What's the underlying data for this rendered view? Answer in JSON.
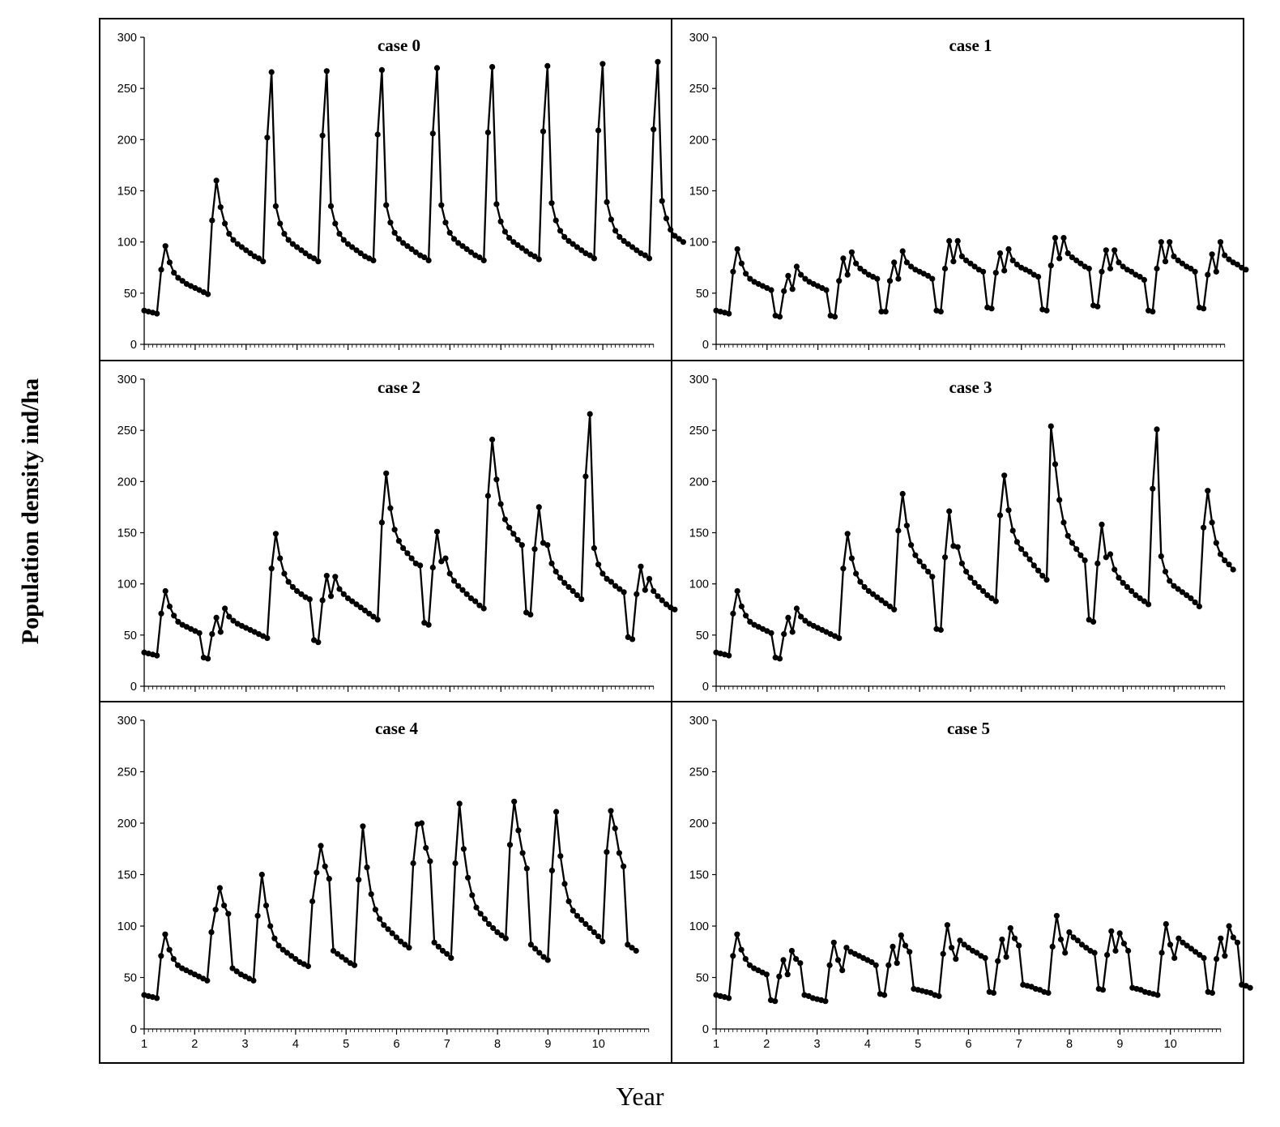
{
  "figure": {
    "ylabel": "Population density ind/ha",
    "xlabel": "Year"
  },
  "chart_data": [
    {
      "type": "line",
      "title": "case 0",
      "ylim": [
        0,
        300
      ],
      "yticks": [
        0,
        50,
        100,
        150,
        200,
        250,
        300
      ],
      "xlim": [
        1,
        11
      ],
      "xticks": [
        "1",
        "2",
        "3",
        "4",
        "5",
        "6",
        "7",
        "8",
        "9",
        "10"
      ],
      "xtick_labels_shown": false,
      "series": [
        {
          "x_start": 1.0,
          "x_step": 0.0833,
          "values": [
            33,
            32,
            31,
            30,
            73,
            96,
            80,
            70,
            65,
            62,
            59,
            57,
            55,
            53,
            51,
            49,
            121,
            160,
            134,
            118,
            108,
            102,
            98,
            95,
            92,
            89,
            86,
            84,
            81,
            202,
            266,
            135,
            118,
            108,
            102,
            98,
            95,
            92,
            89,
            86,
            84,
            81,
            204,
            267,
            135,
            118,
            108,
            102,
            98,
            95,
            92,
            89,
            86,
            84,
            82,
            205,
            268,
            136,
            119,
            109,
            103,
            99,
            96,
            93,
            90,
            87,
            85,
            82,
            206,
            270,
            136,
            119,
            109,
            103,
            99,
            96,
            93,
            90,
            87,
            85,
            82,
            207,
            271,
            137,
            120,
            110,
            104,
            100,
            97,
            94,
            91,
            88,
            86,
            83,
            208,
            272,
            138,
            121,
            111,
            105,
            101,
            98,
            95,
            92,
            89,
            87,
            84,
            209,
            274,
            139,
            122,
            111,
            105,
            101,
            98,
            95,
            92,
            89,
            87,
            84,
            210,
            276,
            140,
            123,
            112,
            106,
            103,
            100
          ]
        }
      ]
    },
    {
      "type": "line",
      "title": "case 1",
      "ylim": [
        0,
        300
      ],
      "yticks": [
        0,
        50,
        100,
        150,
        200,
        250,
        300
      ],
      "xlim": [
        1,
        11
      ],
      "xticks": [
        "1",
        "2",
        "3",
        "4",
        "5",
        "6",
        "7",
        "8",
        "9",
        "10"
      ],
      "xtick_labels_shown": false,
      "series": [
        {
          "x_start": 1.0,
          "x_step": 0.0833,
          "values": [
            33,
            32,
            31,
            30,
            71,
            93,
            79,
            69,
            64,
            61,
            59,
            57,
            55,
            53,
            28,
            27,
            52,
            67,
            54,
            76,
            68,
            64,
            61,
            59,
            57,
            55,
            53,
            28,
            27,
            62,
            84,
            68,
            90,
            79,
            74,
            71,
            68,
            66,
            64,
            32,
            32,
            62,
            80,
            64,
            91,
            80,
            76,
            73,
            71,
            69,
            67,
            64,
            33,
            32,
            74,
            101,
            81,
            101,
            86,
            82,
            79,
            76,
            73,
            71,
            36,
            35,
            70,
            89,
            72,
            93,
            82,
            78,
            75,
            73,
            71,
            68,
            66,
            34,
            33,
            77,
            104,
            84,
            104,
            89,
            85,
            82,
            79,
            76,
            74,
            38,
            37,
            71,
            92,
            74,
            92,
            80,
            76,
            73,
            71,
            68,
            66,
            63,
            33,
            32,
            74,
            100,
            81,
            100,
            86,
            82,
            79,
            76,
            74,
            71,
            36,
            35,
            68,
            88,
            71,
            100,
            87,
            83,
            80,
            78,
            75,
            73
          ]
        }
      ]
    },
    {
      "type": "line",
      "title": "case 2",
      "ylim": [
        0,
        300
      ],
      "yticks": [
        0,
        50,
        100,
        150,
        200,
        250,
        300
      ],
      "xlim": [
        1,
        11
      ],
      "xticks": [
        "1",
        "2",
        "3",
        "4",
        "5",
        "6",
        "7",
        "8",
        "9",
        "10"
      ],
      "xtick_labels_shown": false,
      "series": [
        {
          "x_start": 1.0,
          "x_step": 0.0833,
          "values": [
            33,
            32,
            31,
            30,
            71,
            93,
            78,
            69,
            63,
            60,
            58,
            56,
            54,
            52,
            28,
            27,
            51,
            67,
            53,
            76,
            68,
            64,
            61,
            59,
            57,
            55,
            53,
            51,
            49,
            47,
            115,
            149,
            125,
            110,
            102,
            97,
            93,
            90,
            87,
            85,
            45,
            43,
            84,
            108,
            88,
            107,
            95,
            90,
            86,
            83,
            80,
            77,
            74,
            71,
            68,
            65,
            160,
            208,
            174,
            153,
            142,
            135,
            130,
            125,
            120,
            118,
            62,
            60,
            116,
            151,
            122,
            125,
            110,
            103,
            98,
            94,
            90,
            86,
            83,
            79,
            76,
            186,
            241,
            202,
            178,
            163,
            155,
            149,
            143,
            138,
            72,
            70,
            134,
            175,
            140,
            138,
            120,
            112,
            106,
            101,
            97,
            93,
            89,
            85,
            205,
            266,
            135,
            119,
            110,
            105,
            102,
            98,
            95,
            92,
            48,
            46,
            90,
            117,
            94,
            105,
            93,
            88,
            84,
            80,
            77,
            75
          ]
        }
      ]
    },
    {
      "type": "line",
      "title": "case 3",
      "ylim": [
        0,
        300
      ],
      "yticks": [
        0,
        50,
        100,
        150,
        200,
        250,
        300
      ],
      "xlim": [
        1,
        11
      ],
      "xticks": [
        "1",
        "2",
        "3",
        "4",
        "5",
        "6",
        "7",
        "8",
        "9",
        "10"
      ],
      "xtick_labels_shown": false,
      "series": [
        {
          "x_start": 1.0,
          "x_step": 0.0833,
          "values": [
            33,
            32,
            31,
            30,
            71,
            93,
            78,
            69,
            63,
            60,
            58,
            56,
            54,
            52,
            28,
            27,
            51,
            67,
            53,
            76,
            68,
            64,
            61,
            59,
            57,
            55,
            53,
            51,
            49,
            47,
            115,
            149,
            125,
            110,
            102,
            97,
            93,
            90,
            87,
            84,
            81,
            78,
            75,
            152,
            188,
            157,
            138,
            128,
            122,
            117,
            112,
            107,
            56,
            55,
            126,
            171,
            137,
            136,
            120,
            112,
            106,
            101,
            97,
            93,
            89,
            86,
            83,
            167,
            206,
            172,
            152,
            141,
            134,
            129,
            124,
            118,
            113,
            108,
            104,
            254,
            217,
            182,
            160,
            147,
            140,
            134,
            128,
            123,
            65,
            63,
            120,
            158,
            126,
            129,
            114,
            106,
            101,
            97,
            93,
            89,
            86,
            83,
            80,
            193,
            251,
            127,
            112,
            103,
            98,
            95,
            92,
            89,
            86,
            82,
            78,
            155,
            191,
            160,
            140,
            129,
            123,
            119,
            114
          ]
        }
      ]
    },
    {
      "type": "line",
      "title": "case 4",
      "ylim": [
        0,
        300
      ],
      "yticks": [
        0,
        50,
        100,
        150,
        200,
        250,
        300
      ],
      "xlim": [
        1,
        11
      ],
      "xticks": [
        "1",
        "2",
        "3",
        "4",
        "5",
        "6",
        "7",
        "8",
        "9",
        "10"
      ],
      "xtick_labels_shown": true,
      "series": [
        {
          "x_start": 1.0,
          "x_step": 0.0833,
          "values": [
            33,
            32,
            31,
            30,
            71,
            92,
            77,
            68,
            62,
            59,
            57,
            55,
            53,
            51,
            49,
            47,
            94,
            116,
            137,
            120,
            112,
            59,
            56,
            53,
            51,
            49,
            47,
            110,
            150,
            120,
            100,
            88,
            81,
            77,
            74,
            71,
            68,
            65,
            63,
            61,
            124,
            152,
            178,
            158,
            146,
            76,
            73,
            70,
            67,
            64,
            62,
            145,
            197,
            157,
            131,
            116,
            107,
            101,
            97,
            93,
            89,
            85,
            82,
            79,
            161,
            199,
            200,
            176,
            163,
            84,
            80,
            76,
            73,
            69,
            161,
            219,
            175,
            147,
            130,
            118,
            112,
            107,
            102,
            98,
            94,
            91,
            88,
            179,
            221,
            193,
            171,
            156,
            82,
            78,
            74,
            70,
            67,
            154,
            211,
            168,
            141,
            124,
            115,
            110,
            106,
            102,
            98,
            94,
            90,
            85,
            172,
            212,
            195,
            171,
            158,
            82,
            79,
            76
          ]
        }
      ]
    },
    {
      "type": "line",
      "title": "case 5",
      "ylim": [
        0,
        300
      ],
      "yticks": [
        0,
        50,
        100,
        150,
        200,
        250,
        300
      ],
      "xlim": [
        1,
        11
      ],
      "xticks": [
        "1",
        "2",
        "3",
        "4",
        "5",
        "6",
        "7",
        "8",
        "9",
        "10"
      ],
      "xtick_labels_shown": true,
      "series": [
        {
          "x_start": 1.0,
          "x_step": 0.0833,
          "values": [
            33,
            32,
            31,
            30,
            71,
            92,
            77,
            68,
            62,
            59,
            57,
            55,
            53,
            28,
            27,
            51,
            67,
            53,
            76,
            68,
            64,
            33,
            32,
            30,
            29,
            28,
            27,
            62,
            84,
            67,
            57,
            79,
            75,
            73,
            71,
            69,
            67,
            65,
            62,
            34,
            33,
            62,
            80,
            64,
            91,
            81,
            75,
            39,
            38,
            37,
            36,
            35,
            33,
            32,
            73,
            101,
            79,
            68,
            86,
            82,
            79,
            76,
            74,
            71,
            69,
            36,
            35,
            66,
            87,
            70,
            98,
            88,
            81,
            43,
            42,
            41,
            39,
            38,
            36,
            35,
            80,
            110,
            87,
            74,
            94,
            89,
            86,
            82,
            79,
            76,
            74,
            39,
            38,
            72,
            95,
            76,
            93,
            83,
            76,
            40,
            39,
            38,
            36,
            35,
            34,
            33,
            74,
            102,
            82,
            69,
            88,
            84,
            81,
            78,
            75,
            72,
            69,
            36,
            35,
            68,
            88,
            71,
            100,
            89,
            84,
            43,
            42,
            40
          ]
        }
      ]
    }
  ]
}
